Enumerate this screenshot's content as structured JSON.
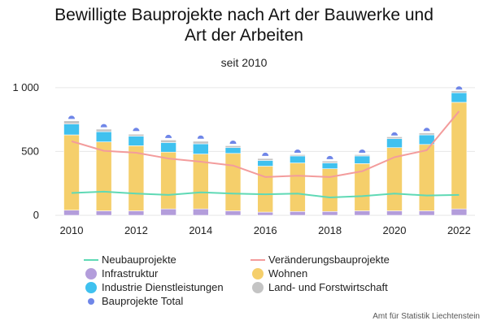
{
  "header": {
    "title_line1": "Bewilligte Bauprojekte nach Art der Bauwerke und",
    "title_line2": "Art der Arbeiten",
    "subtitle": "seit 2010"
  },
  "source": "Amt für Statistik Liechtenstein",
  "chart_data": {
    "type": "bar",
    "categories": [
      "2010",
      "2011",
      "2012",
      "2013",
      "2014",
      "2015",
      "2016",
      "2017",
      "2018",
      "2019",
      "2020",
      "2021",
      "2022"
    ],
    "x_tick_labels": [
      "2010",
      "2012",
      "2014",
      "2016",
      "2018",
      "2020",
      "2022"
    ],
    "y_tick_labels": [
      "0",
      "500",
      "1 000"
    ],
    "ylim": [
      0,
      1050
    ],
    "stacked": true,
    "grid": true,
    "legend_position": "bottom",
    "series": [
      {
        "name": "Infrastruktur",
        "kind": "bar",
        "color": "#b39ddb",
        "values": [
          40,
          35,
          35,
          50,
          50,
          35,
          25,
          30,
          30,
          35,
          35,
          35,
          50
        ]
      },
      {
        "name": "Wohnen",
        "kind": "bar",
        "color": "#f5cf6b",
        "values": [
          590,
          540,
          510,
          445,
          430,
          450,
          360,
          380,
          335,
          370,
          495,
          520,
          835
        ]
      },
      {
        "name": "Industrie Dienstleistungen",
        "kind": "bar",
        "color": "#3fc1ef",
        "values": [
          85,
          80,
          75,
          75,
          80,
          45,
          45,
          55,
          45,
          60,
          70,
          75,
          75
        ]
      },
      {
        "name": "Land- und Forstwirtschaft",
        "kind": "bar",
        "color": "#c4c4c4",
        "values": [
          25,
          20,
          15,
          20,
          20,
          15,
          15,
          10,
          15,
          10,
          15,
          15,
          15
        ]
      },
      {
        "name": "Neubauprojekte",
        "kind": "line",
        "color": "#5fd9b5",
        "values": [
          175,
          185,
          170,
          160,
          180,
          170,
          165,
          170,
          140,
          150,
          170,
          155,
          160
        ]
      },
      {
        "name": "Veränderungsbauprojekte",
        "kind": "line",
        "color": "#f39c9c",
        "values": [
          580,
          505,
          490,
          445,
          420,
          390,
          300,
          310,
          300,
          345,
          455,
          510,
          815
        ]
      },
      {
        "name": "Bauprojekte Total",
        "kind": "marker",
        "color": "#6f86e8",
        "values": [
          755,
          690,
          660,
          605,
          600,
          560,
          465,
          490,
          440,
          490,
          625,
          660,
          985
        ]
      }
    ]
  },
  "legend": {
    "items": [
      {
        "label": "Neubauprojekte",
        "symbol": "line",
        "color": "#5fd9b5"
      },
      {
        "label": "Veränderungsbauprojekte",
        "symbol": "line",
        "color": "#f39c9c"
      },
      {
        "label": "Infrastruktur",
        "symbol": "circle",
        "color": "#b39ddb"
      },
      {
        "label": "Wohnen",
        "symbol": "circle",
        "color": "#f5cf6b"
      },
      {
        "label": "Industrie Dienstleistungen",
        "symbol": "circle",
        "color": "#3fc1ef"
      },
      {
        "label": "Land- und Forstwirtschaft",
        "symbol": "circle",
        "color": "#c4c4c4"
      },
      {
        "label": "Bauprojekte Total",
        "symbol": "dot",
        "color": "#6f86e8"
      }
    ]
  }
}
